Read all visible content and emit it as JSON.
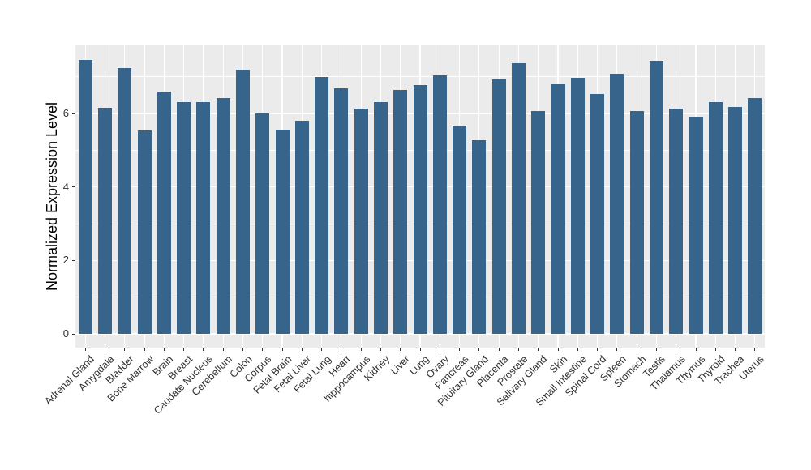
{
  "chart_data": {
    "type": "bar",
    "title": "",
    "xlabel": "",
    "ylabel": "Normalized Expression Level",
    "categories": [
      "Adrenal Gland",
      "Amygdala",
      "Bladder",
      "Bone Marrow",
      "Brain",
      "Breast",
      "Caudate Nucleus",
      "Cerebellum",
      "Colon",
      "Corpus",
      "Fetal Brain",
      "Fetal Liver",
      "Fetal Lung",
      "Heart",
      "hippocampus",
      "Kidney",
      "Liver",
      "Lung",
      "Ovary",
      "Pancreas",
      "Pituitary Gland",
      "Placenta",
      "Prostate",
      "Salivary Gland",
      "Skin",
      "Small Intestine",
      "Spinal Cord",
      "Spleen",
      "Stomach",
      "Testis",
      "Thalamus",
      "Thymus",
      "Thyroid",
      "Trachea",
      "Uterus"
    ],
    "values": [
      7.46,
      6.15,
      7.24,
      5.53,
      6.6,
      6.3,
      6.32,
      6.43,
      7.2,
      6.0,
      5.57,
      5.8,
      7.0,
      6.68,
      6.14,
      6.3,
      6.64,
      6.77,
      7.03,
      5.66,
      5.27,
      6.92,
      7.36,
      6.07,
      6.79,
      6.97,
      6.53,
      7.08,
      6.07,
      7.43,
      6.13,
      5.91,
      6.31,
      6.18,
      6.42
    ],
    "y_ticks": [
      0,
      2,
      4,
      6
    ],
    "y_minor_ticks": [
      1,
      3,
      5,
      7
    ],
    "ylim": [
      -0.37,
      7.85
    ],
    "x_tick_rotation_deg": 45,
    "legend_position": "none",
    "grid": true,
    "colors": {
      "bar_fill": "#36648B",
      "panel_background": "#EBEBEB",
      "grid_line": "#FFFFFF",
      "axis_text": "#303030",
      "tick_mark": "#333333"
    }
  }
}
